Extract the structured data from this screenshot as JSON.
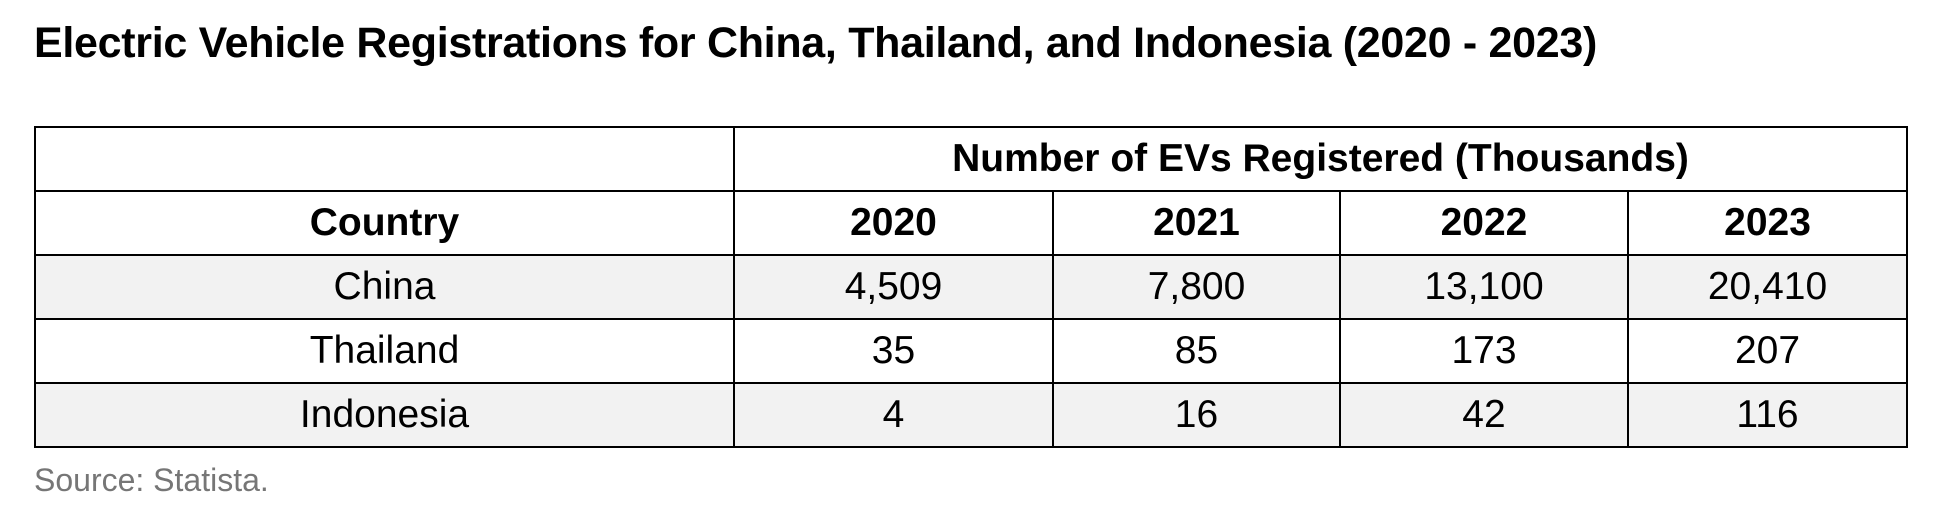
{
  "title": "Electric Vehicle Registrations for China, Thailand, and Indonesia (2020 - 2023)",
  "source": "Source: Statista.",
  "chart_data": {
    "type": "table",
    "title": "Electric Vehicle Registrations for China, Thailand, and Indonesia (2020 - 2023)",
    "group_header": "Number of EVs Registered (Thousands)",
    "row_header": "Country",
    "columns": [
      "2020",
      "2021",
      "2022",
      "2023"
    ],
    "rows": [
      {
        "country": "China",
        "values": [
          "4,509",
          "7,800",
          "13,100",
          "20,410"
        ]
      },
      {
        "country": "Thailand",
        "values": [
          "35",
          "85",
          "173",
          "207"
        ]
      },
      {
        "country": "Indonesia",
        "values": [
          "4",
          "16",
          "42",
          "116"
        ]
      }
    ],
    "shaded_row_color": "#f2f2f2",
    "source": "Source: Statista."
  }
}
